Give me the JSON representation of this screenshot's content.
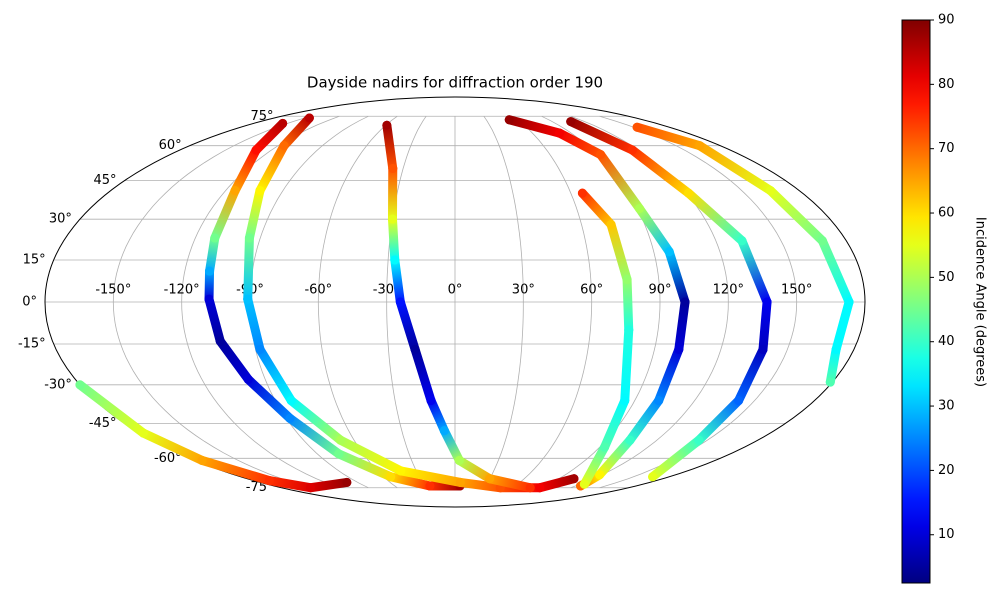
{
  "chart_data": {
    "type": "scatter",
    "projection": "mollweide",
    "title": "Dayside nadirs for diffraction order 190",
    "colorbar_label": "Incidence Angle (degrees)",
    "colormap": "jet",
    "clim": [
      2.5,
      90
    ],
    "colorbar_ticks": [
      10,
      20,
      30,
      40,
      50,
      60,
      70,
      80,
      90
    ],
    "grid": true,
    "xticks": [
      {
        "value": -150,
        "label": "-150°"
      },
      {
        "value": -120,
        "label": "-120°"
      },
      {
        "value": -90,
        "label": "-90°"
      },
      {
        "value": -60,
        "label": "-60°"
      },
      {
        "value": -30,
        "label": "-30°"
      },
      {
        "value": 0,
        "label": "0°"
      },
      {
        "value": 30,
        "label": "30°"
      },
      {
        "value": 60,
        "label": "60°"
      },
      {
        "value": 90,
        "label": "90°"
      },
      {
        "value": 120,
        "label": "120°"
      },
      {
        "value": 150,
        "label": "150°"
      }
    ],
    "yticks": [
      {
        "value": -75,
        "label": "-75°"
      },
      {
        "value": -60,
        "label": "-60°"
      },
      {
        "value": -45,
        "label": "-45°"
      },
      {
        "value": -30,
        "label": "-30°"
      },
      {
        "value": -15,
        "label": "-15°"
      },
      {
        "value": 0,
        "label": "0°"
      },
      {
        "value": 15,
        "label": "15°"
      },
      {
        "value": 30,
        "label": "30°"
      },
      {
        "value": 45,
        "label": "45°"
      },
      {
        "value": 60,
        "label": "60°"
      },
      {
        "value": 75,
        "label": "75°"
      }
    ],
    "series": [
      {
        "x": [
          -154,
          -130,
          -115,
          -111,
          -109,
          -108,
          -105,
          -98,
          -88,
          -76,
          -54,
          -25,
          5
        ],
        "y": [
          71,
          58,
          41,
          23,
          11,
          1,
          -14,
          -28,
          -43,
          -58,
          -69,
          -74,
          -74
        ],
        "values": [
          85,
          78,
          65,
          45,
          28,
          10,
          5,
          10,
          25,
          45,
          60,
          75,
          87
        ]
      },
      {
        "x": [
          -145,
          -116,
          -102,
          -95,
          -91,
          -88,
          -82,
          -68,
          -42,
          5,
          47,
          88,
          103
        ],
        "y": [
          74,
          60,
          41,
          23,
          1,
          -17,
          -36,
          -52,
          -66,
          -72,
          -75,
          -75,
          -70
        ],
        "values": [
          85,
          70,
          58,
          45,
          30,
          25,
          35,
          50,
          58,
          65,
          72,
          80,
          87
        ]
      },
      {
        "x": [
          -59,
          -36,
          -30,
          -27,
          -24,
          -18,
          -12,
          -6,
          3,
          30,
          78
        ],
        "y": [
          70,
          50,
          30,
          15,
          0,
          -17,
          -36,
          -48,
          -61,
          -70,
          -75
        ],
        "values": [
          87,
          72,
          55,
          35,
          15,
          5,
          12,
          28,
          50,
          65,
          75
        ]
      },
      {
        "x": [
          52,
          81,
          92,
          91,
          97,
          101,
          101,
          102,
          104,
          118,
          125
        ],
        "y": [
          73,
          66,
          56,
          34,
          18,
          0,
          -17,
          -36,
          -52,
          -68,
          -74
        ],
        "values": [
          88,
          80,
          72,
          50,
          30,
          5,
          10,
          25,
          40,
          58,
          70
        ]
      },
      {
        "x": [
          107,
          116,
          121,
          132,
          137,
          139,
          142,
          145,
          166
        ],
        "y": [
          72,
          58,
          40,
          22,
          0,
          -17,
          -36,
          -52,
          -69
        ],
        "values": [
          88,
          75,
          60,
          40,
          12,
          8,
          22,
          40,
          55
        ]
      },
      {
        "x": [
          66,
          74,
          76,
          77,
          85,
          93,
          124
        ],
        "y": [
          40,
          28,
          8,
          -10,
          -36,
          -55,
          -73
        ],
        "values": [
          75,
          62,
          48,
          38,
          35,
          42,
          55
        ]
      },
      {
        "x": [
          153,
          166,
          165,
          169,
          173,
          172,
          179
        ],
        "y": [
          69,
          60,
          41,
          22,
          0,
          -17,
          -29
        ],
        "values": [
          72,
          65,
          55,
          45,
          35,
          35,
          42
        ]
      },
      {
        "x": [
          -180,
          -178,
          -175,
          -166,
          -150,
          -100
        ],
        "y": [
          -30,
          -49,
          -61,
          -71,
          -75,
          -72
        ],
        "values": [
          45,
          55,
          65,
          75,
          82,
          88
        ]
      }
    ]
  }
}
